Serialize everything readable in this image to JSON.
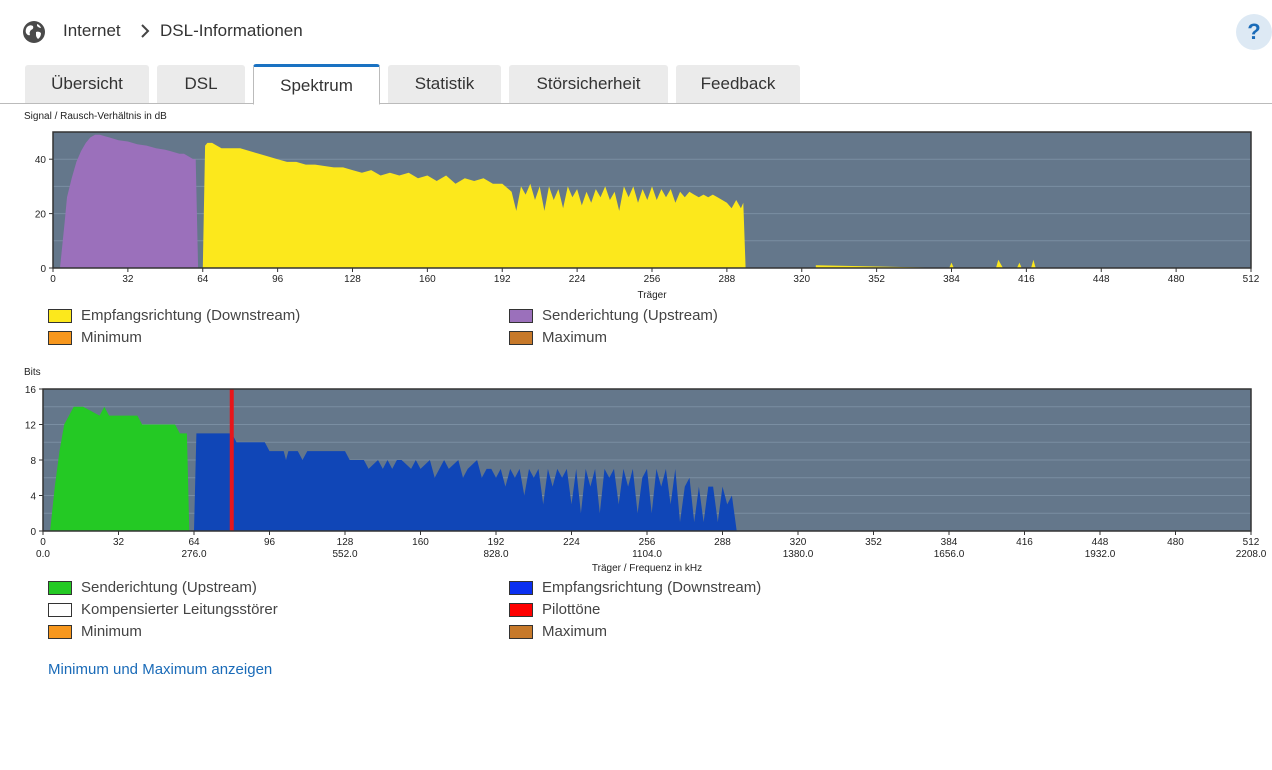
{
  "breadcrumb": {
    "root": "Internet",
    "current": "DSL-Informationen"
  },
  "help_label": "?",
  "tabs": [
    "Übersicht",
    "DSL",
    "Spektrum",
    "Statistik",
    "Störsicherheit",
    "Feedback"
  ],
  "active_tab": "Spektrum",
  "colors": {
    "plot_bg": "#64778b",
    "downstream_snr": "#fce81c",
    "upstream_snr": "#9b70bb",
    "upstream_bits": "#24c924",
    "downstream_bits": "#1046b7",
    "pilot": "#e8161a",
    "minimum": "#f7971d",
    "maximum": "#c7792a"
  },
  "snr_chart": {
    "title": "Signal / Rausch-Verhältnis in dB",
    "xlabel": "Träger"
  },
  "bits_chart": {
    "title": "Bits",
    "xlabel": "Träger / Frequenz in kHz"
  },
  "legend_snr": {
    "downstream": "Empfangsrichtung (Downstream)",
    "upstream": "Senderichtung (Upstream)",
    "minimum": "Minimum",
    "maximum": "Maximum"
  },
  "legend_bits": {
    "upstream": "Senderichtung (Upstream)",
    "downstream": "Empfangsrichtung (Downstream)",
    "compensated": "Kompensierter Leitungsstörer",
    "pilot": "Pilottöne",
    "minimum": "Minimum",
    "maximum": "Maximum"
  },
  "show_minmax_link": "Minimum und Maximum anzeigen",
  "chart_data": [
    {
      "type": "area",
      "title": "Signal / Rausch-Verhältnis in dB",
      "xlabel": "Träger",
      "ylabel": "",
      "xlim": [
        0,
        512
      ],
      "ylim": [
        0,
        50
      ],
      "x_ticks": [
        "0",
        "32",
        "64",
        "96",
        "128",
        "160",
        "192",
        "224",
        "256",
        "288",
        "320",
        "352",
        "384",
        "416",
        "448",
        "480",
        "512"
      ],
      "y_ticks": [
        "0",
        "20",
        "40"
      ],
      "grid": true,
      "legend_position": "bottom",
      "series": [
        {
          "name": "Senderichtung (Upstream)",
          "color": "#9b70bb",
          "x": [
            3,
            5,
            6,
            8,
            10,
            12,
            14,
            16,
            18,
            20,
            22,
            24,
            28,
            32,
            36,
            40,
            44,
            48,
            50,
            52,
            54,
            56,
            58,
            60,
            61,
            62,
            63
          ],
          "y": [
            0,
            17,
            26,
            33,
            39,
            43,
            46,
            48,
            49,
            49,
            48.5,
            48,
            47,
            46.5,
            45.5,
            45,
            44,
            43.5,
            43,
            42.5,
            42,
            42,
            41,
            40,
            40,
            0,
            0
          ]
        },
        {
          "name": "Empfangsrichtung (Downstream)",
          "color": "#fce81c",
          "x": [
            64,
            65,
            66,
            68,
            70,
            72,
            76,
            80,
            84,
            88,
            92,
            96,
            100,
            104,
            108,
            112,
            116,
            120,
            124,
            128,
            132,
            136,
            140,
            144,
            148,
            152,
            156,
            160,
            164,
            168,
            172,
            176,
            180,
            184,
            188,
            192,
            196,
            198,
            200,
            202,
            204,
            206,
            208,
            210,
            212,
            214,
            216,
            218,
            220,
            222,
            224,
            226,
            228,
            230,
            232,
            234,
            236,
            238,
            240,
            242,
            244,
            246,
            248,
            250,
            252,
            254,
            256,
            258,
            260,
            262,
            264,
            266,
            268,
            270,
            272,
            274,
            276,
            278,
            280,
            282,
            284,
            286,
            288,
            290,
            292,
            294,
            295,
            296
          ],
          "y": [
            0,
            45,
            46,
            46,
            45,
            44,
            44,
            44,
            43,
            42,
            41,
            40,
            39,
            39,
            38,
            38,
            37.5,
            37,
            37,
            36,
            35,
            36,
            34,
            35,
            34,
            35,
            33,
            34,
            32,
            34,
            31,
            33,
            32,
            33,
            31,
            31,
            28,
            21,
            30,
            27,
            31,
            25,
            30,
            21,
            30,
            25,
            29,
            22,
            30,
            26,
            29,
            23,
            28,
            24,
            29,
            26,
            30,
            25,
            28,
            21,
            30,
            26,
            30,
            24,
            29,
            25,
            30,
            25,
            29,
            26,
            29,
            24,
            28,
            26,
            28,
            27,
            26,
            27,
            26,
            27,
            26,
            25,
            24,
            22,
            25,
            22,
            24,
            0
          ]
        },
        {
          "name": "Empfangsrichtung (Downstream) spots",
          "color": "#fce81c",
          "x": [
            326,
            383,
            384,
            385,
            403,
            404,
            406,
            412,
            413,
            414,
            418,
            419,
            420
          ],
          "y": [
            1,
            0,
            2,
            0,
            0,
            3,
            0,
            0,
            2,
            0,
            0,
            3,
            0
          ]
        }
      ]
    },
    {
      "type": "area",
      "title": "Bits",
      "xlabel": "Träger / Frequenz in kHz",
      "ylabel": "",
      "xlim": [
        0,
        512
      ],
      "ylim": [
        0,
        16
      ],
      "x_ticks": [
        "0",
        "32",
        "64",
        "96",
        "128",
        "160",
        "192",
        "224",
        "256",
        "288",
        "320",
        "352",
        "384",
        "416",
        "448",
        "480",
        "512"
      ],
      "x_ticks_khz": [
        "0.0",
        "276.0",
        "552.0",
        "828.0",
        "1104.0",
        "1380.0",
        "1656.0",
        "1932.0",
        "2208.0"
      ],
      "y_ticks": [
        "0",
        "4",
        "8",
        "12",
        "16"
      ],
      "grid": true,
      "legend_position": "bottom",
      "series": [
        {
          "name": "Senderichtung (Upstream)",
          "color": "#24c924",
          "x": [
            3,
            5,
            7,
            9,
            11,
            13,
            15,
            17,
            24,
            26,
            28,
            30,
            32,
            40,
            42,
            50,
            56,
            58,
            60,
            61,
            62,
            63
          ],
          "y": [
            0,
            5,
            9,
            12,
            13,
            14,
            14,
            14,
            13,
            14,
            13,
            13,
            13,
            13,
            12,
            12,
            12,
            11,
            11,
            11,
            0,
            0
          ]
        },
        {
          "name": "Empfangsrichtung (Downstream)",
          "color": "#1046b7",
          "x": [
            64,
            65,
            66,
            80,
            82,
            94,
            96,
            102,
            103,
            104,
            108,
            110,
            112,
            128,
            130,
            136,
            138,
            142,
            144,
            146,
            148,
            150,
            152,
            156,
            158,
            160,
            164,
            166,
            168,
            170,
            172,
            176,
            178,
            180,
            184,
            186,
            188,
            190,
            192,
            194,
            196,
            198,
            200,
            202,
            204,
            206,
            208,
            210,
            212,
            214,
            216,
            218,
            220,
            222,
            224,
            226,
            228,
            230,
            232,
            234,
            236,
            238,
            240,
            242,
            244,
            246,
            248,
            250,
            252,
            254,
            256,
            258,
            260,
            262,
            264,
            266,
            268,
            270,
            272,
            274,
            276,
            278,
            280,
            282,
            284,
            286,
            288,
            290,
            292,
            294,
            295
          ],
          "y": [
            0,
            11,
            11,
            11,
            10,
            10,
            9,
            9,
            8,
            9,
            9,
            8,
            9,
            9,
            8,
            8,
            7,
            8,
            7,
            8,
            7,
            8,
            8,
            7,
            8,
            7,
            8,
            6,
            7,
            8,
            7,
            8,
            6,
            7,
            8,
            6,
            7,
            7,
            6,
            7,
            5,
            7,
            6,
            7,
            4,
            7,
            6,
            7,
            3,
            7,
            5,
            7,
            6,
            7,
            3,
            7,
            2,
            7,
            5,
            7,
            2,
            7,
            6,
            7,
            3,
            7,
            5,
            7,
            2,
            6,
            7,
            2,
            7,
            5,
            7,
            3,
            7,
            1,
            5,
            6,
            1,
            5,
            1,
            5,
            5,
            1,
            5,
            3,
            4,
            0,
            0
          ]
        },
        {
          "name": "Pilottöne",
          "color": "#e8161a",
          "x": [
            80
          ],
          "y": [
            16
          ]
        }
      ]
    }
  ]
}
